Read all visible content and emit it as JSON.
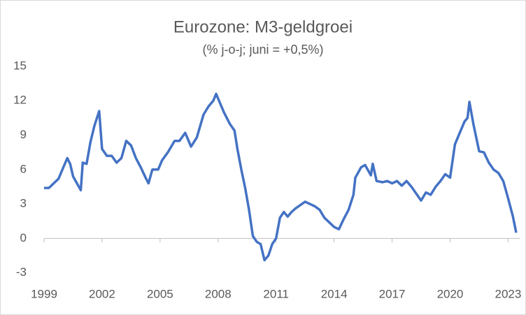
{
  "chart_data": {
    "type": "line",
    "title": "Eurozone: M3-geldgroei",
    "subtitle": "(% j-o-j; juni = +0,5%)",
    "x": [
      1999.0,
      1999.25,
      1999.5,
      1999.75,
      2000.0,
      2000.2,
      2000.35,
      2000.5,
      2000.7,
      2000.9,
      2001.0,
      2001.2,
      2001.4,
      2001.6,
      2001.85,
      2002.0,
      2002.25,
      2002.5,
      2002.75,
      2003.0,
      2003.25,
      2003.5,
      2003.75,
      2004.0,
      2004.25,
      2004.4,
      2004.6,
      2004.9,
      2005.1,
      2005.4,
      2005.75,
      2006.0,
      2006.3,
      2006.6,
      2006.9,
      2007.25,
      2007.5,
      2007.75,
      2007.9,
      2008.1,
      2008.3,
      2008.6,
      2008.85,
      2009.0,
      2009.2,
      2009.4,
      2009.6,
      2009.8,
      2010.0,
      2010.2,
      2010.4,
      2010.6,
      2010.8,
      2011.0,
      2011.2,
      2011.4,
      2011.6,
      2011.8,
      2012.0,
      2012.25,
      2012.5,
      2012.75,
      2013.0,
      2013.25,
      2013.5,
      2013.75,
      2014.0,
      2014.25,
      2014.5,
      2014.75,
      2015.0,
      2015.1,
      2015.4,
      2015.6,
      2015.9,
      2016.0,
      2016.2,
      2016.5,
      2016.75,
      2017.0,
      2017.25,
      2017.5,
      2017.75,
      2018.0,
      2018.25,
      2018.5,
      2018.75,
      2019.0,
      2019.25,
      2019.5,
      2019.75,
      2020.0,
      2020.25,
      2020.5,
      2020.75,
      2020.9,
      2021.0,
      2021.2,
      2021.5,
      2021.75,
      2022.0,
      2022.25,
      2022.5,
      2022.75,
      2023.0,
      2023.25,
      2023.42
    ],
    "series": [
      {
        "name": "M3",
        "color": "#4472c4",
        "values": [
          4.4,
          4.4,
          4.8,
          5.2,
          6.2,
          7.0,
          6.5,
          5.4,
          4.8,
          4.2,
          6.6,
          6.5,
          8.4,
          9.8,
          11.1,
          7.8,
          7.2,
          7.2,
          6.6,
          7.0,
          8.5,
          8.1,
          7.0,
          6.2,
          5.3,
          4.8,
          6.0,
          6.0,
          6.8,
          7.5,
          8.5,
          8.5,
          9.2,
          8.0,
          8.8,
          10.8,
          11.5,
          12.0,
          12.6,
          11.8,
          11.0,
          10.0,
          9.4,
          7.8,
          6.0,
          4.4,
          2.5,
          0.2,
          -0.3,
          -0.5,
          -1.9,
          -1.5,
          -0.5,
          0.0,
          1.8,
          2.3,
          1.9,
          2.3,
          2.6,
          2.9,
          3.2,
          3.0,
          2.8,
          2.5,
          1.8,
          1.4,
          1.0,
          0.8,
          1.7,
          2.5,
          3.8,
          5.3,
          6.2,
          6.4,
          5.5,
          6.5,
          5.0,
          4.9,
          5.0,
          4.8,
          5.0,
          4.6,
          5.0,
          4.5,
          3.9,
          3.3,
          4.0,
          3.8,
          4.5,
          5.0,
          5.6,
          5.3,
          8.2,
          9.2,
          10.2,
          10.5,
          11.9,
          10.0,
          7.6,
          7.5,
          6.6,
          6.0,
          5.7,
          5.0,
          3.5,
          1.9,
          0.5
        ]
      }
    ],
    "xlim": [
      1999,
      2023.6
    ],
    "xticks": [
      1999,
      2002,
      2005,
      2008,
      2011,
      2014,
      2017,
      2020,
      2023
    ],
    "ylim": [
      -4,
      15
    ],
    "yticks": [
      -3,
      0,
      3,
      6,
      9,
      12,
      15
    ],
    "grid": false
  }
}
